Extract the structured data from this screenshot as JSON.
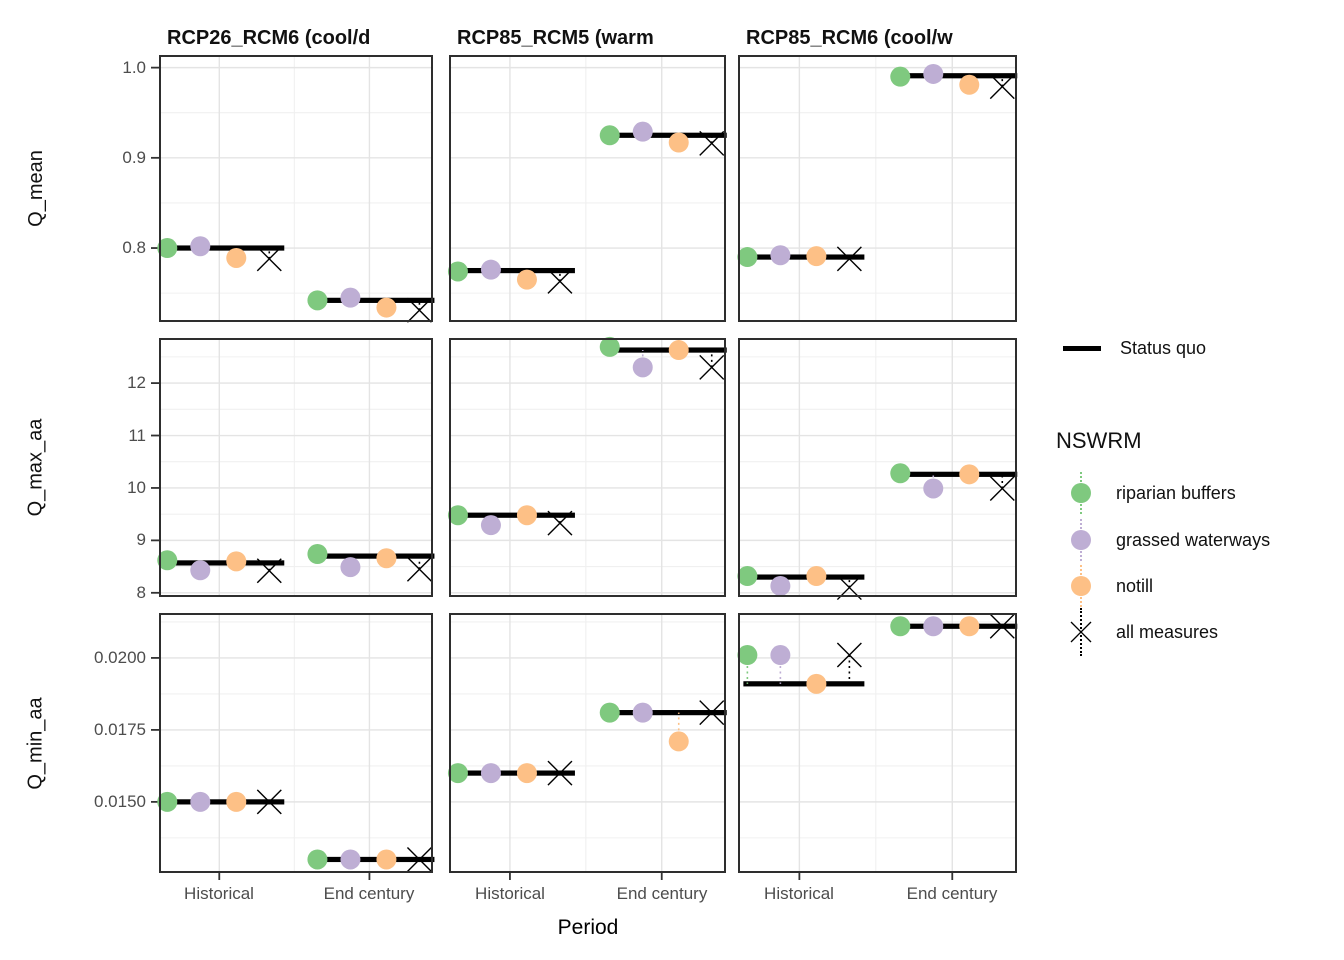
{
  "axis": {
    "x_title": "Period",
    "x_categories": [
      "Historical",
      "End century"
    ]
  },
  "legend": {
    "status_quo_label": "Status quo",
    "title": "NSWRM",
    "items": [
      {
        "key": "riparian_buffers",
        "name": "riparian buffers",
        "color": "#7FC97F",
        "marker": "circle"
      },
      {
        "key": "grassed_waterways",
        "name": "grassed waterways",
        "color": "#BEAED4",
        "marker": "circle"
      },
      {
        "key": "notill",
        "name": "notill",
        "color": "#FDC086",
        "marker": "circle"
      },
      {
        "key": "all_measures",
        "name": "all measures",
        "color": "#000000",
        "marker": "x"
      }
    ]
  },
  "style": {
    "status_quo_color": "#000000",
    "grid_major_color": "#e4e4e4",
    "grid_minor_color": "#f0f0f0",
    "panel_border_color": "#2e2e2e",
    "tick_color": "#333333",
    "tick_label_color": "#4d4d4d"
  },
  "chart_data": {
    "type": "scatter",
    "facet_cols": [
      "RCP26_RCM6 (cool/d",
      "RCP85_RCM5 (warm",
      "RCP85_RCM6 (cool/w"
    ],
    "facet_rows": [
      {
        "label": "Q_mean",
        "ylim": [
          0.718,
          1.014
        ],
        "ticks": [
          0.8,
          0.9,
          1.0
        ],
        "tick_labels": [
          "0.8",
          "0.9",
          "1.0"
        ],
        "minor": [
          0.75,
          0.85,
          0.95
        ]
      },
      {
        "label": "Q_max_aa",
        "ylim": [
          7.92,
          12.86
        ],
        "ticks": [
          8,
          9,
          10,
          11,
          12
        ],
        "tick_labels": [
          "8",
          "9",
          "10",
          "11",
          "12"
        ],
        "minor": [
          8.5,
          9.5,
          10.5,
          11.5,
          12.5
        ]
      },
      {
        "label": "Q_min_aa",
        "ylim": [
          0.01253,
          0.02156
        ],
        "ticks": [
          0.015,
          0.0175,
          0.02
        ],
        "tick_labels": [
          "0.0150",
          "0.0175",
          "0.0200"
        ],
        "minor": [
          0.01375,
          0.01625,
          0.01875,
          0.02125
        ]
      }
    ],
    "series_order": [
      "status_quo",
      "riparian_buffers",
      "grassed_waterways",
      "notill",
      "all_measures"
    ],
    "panels": [
      {
        "row": 0,
        "col": 0,
        "groups": [
          {
            "period": "Historical",
            "status_quo": 0.8,
            "riparian_buffers": 0.8,
            "grassed_waterways": 0.802,
            "notill": 0.789,
            "all_measures": 0.788
          },
          {
            "period": "End century",
            "status_quo": 0.742,
            "riparian_buffers": 0.742,
            "grassed_waterways": 0.745,
            "notill": 0.734,
            "all_measures": 0.731
          }
        ]
      },
      {
        "row": 0,
        "col": 1,
        "groups": [
          {
            "period": "Historical",
            "status_quo": 0.775,
            "riparian_buffers": 0.774,
            "grassed_waterways": 0.776,
            "notill": 0.765,
            "all_measures": 0.763
          },
          {
            "period": "End century",
            "status_quo": 0.925,
            "riparian_buffers": 0.925,
            "grassed_waterways": 0.929,
            "notill": 0.917,
            "all_measures": 0.916
          }
        ]
      },
      {
        "row": 0,
        "col": 2,
        "groups": [
          {
            "period": "Historical",
            "status_quo": 0.79,
            "riparian_buffers": 0.79,
            "grassed_waterways": 0.792,
            "notill": 0.791,
            "all_measures": 0.788
          },
          {
            "period": "End century",
            "status_quo": 0.991,
            "riparian_buffers": 0.99,
            "grassed_waterways": 0.993,
            "notill": 0.981,
            "all_measures": 0.979
          }
        ]
      },
      {
        "row": 1,
        "col": 0,
        "groups": [
          {
            "period": "Historical",
            "status_quo": 8.57,
            "riparian_buffers": 8.62,
            "grassed_waterways": 8.43,
            "notill": 8.6,
            "all_measures": 8.42
          },
          {
            "period": "End century",
            "status_quo": 8.7,
            "riparian_buffers": 8.74,
            "grassed_waterways": 8.49,
            "notill": 8.66,
            "all_measures": 8.45
          }
        ]
      },
      {
        "row": 1,
        "col": 1,
        "groups": [
          {
            "period": "Historical",
            "status_quo": 9.48,
            "riparian_buffers": 9.48,
            "grassed_waterways": 9.29,
            "notill": 9.48,
            "all_measures": 9.33
          },
          {
            "period": "End century",
            "status_quo": 12.63,
            "riparian_buffers": 12.69,
            "grassed_waterways": 12.3,
            "notill": 12.63,
            "all_measures": 12.3
          }
        ]
      },
      {
        "row": 1,
        "col": 2,
        "groups": [
          {
            "period": "Historical",
            "status_quo": 8.3,
            "riparian_buffers": 8.32,
            "grassed_waterways": 8.13,
            "notill": 8.32,
            "all_measures": 8.1
          },
          {
            "period": "End century",
            "status_quo": 10.26,
            "riparian_buffers": 10.28,
            "grassed_waterways": 9.99,
            "notill": 10.26,
            "all_measures": 9.99
          }
        ]
      },
      {
        "row": 2,
        "col": 0,
        "groups": [
          {
            "period": "Historical",
            "status_quo": 0.015,
            "riparian_buffers": 0.015,
            "grassed_waterways": 0.015,
            "notill": 0.015,
            "all_measures": 0.015
          },
          {
            "period": "End century",
            "status_quo": 0.013,
            "riparian_buffers": 0.013,
            "grassed_waterways": 0.013,
            "notill": 0.013,
            "all_measures": 0.013
          }
        ]
      },
      {
        "row": 2,
        "col": 1,
        "groups": [
          {
            "period": "Historical",
            "status_quo": 0.016,
            "riparian_buffers": 0.016,
            "grassed_waterways": 0.016,
            "notill": 0.016,
            "all_measures": 0.016
          },
          {
            "period": "End century",
            "status_quo": 0.0181,
            "riparian_buffers": 0.0181,
            "grassed_waterways": 0.0181,
            "notill": 0.0171,
            "all_measures": 0.0181
          }
        ]
      },
      {
        "row": 2,
        "col": 2,
        "groups": [
          {
            "period": "Historical",
            "status_quo": 0.0191,
            "riparian_buffers": 0.0201,
            "grassed_waterways": 0.0201,
            "notill": 0.0191,
            "all_measures": 0.0201
          },
          {
            "period": "End century",
            "status_quo": 0.0211,
            "riparian_buffers": 0.0211,
            "grassed_waterways": 0.0211,
            "notill": 0.0211,
            "all_measures": 0.0211
          }
        ]
      }
    ]
  }
}
